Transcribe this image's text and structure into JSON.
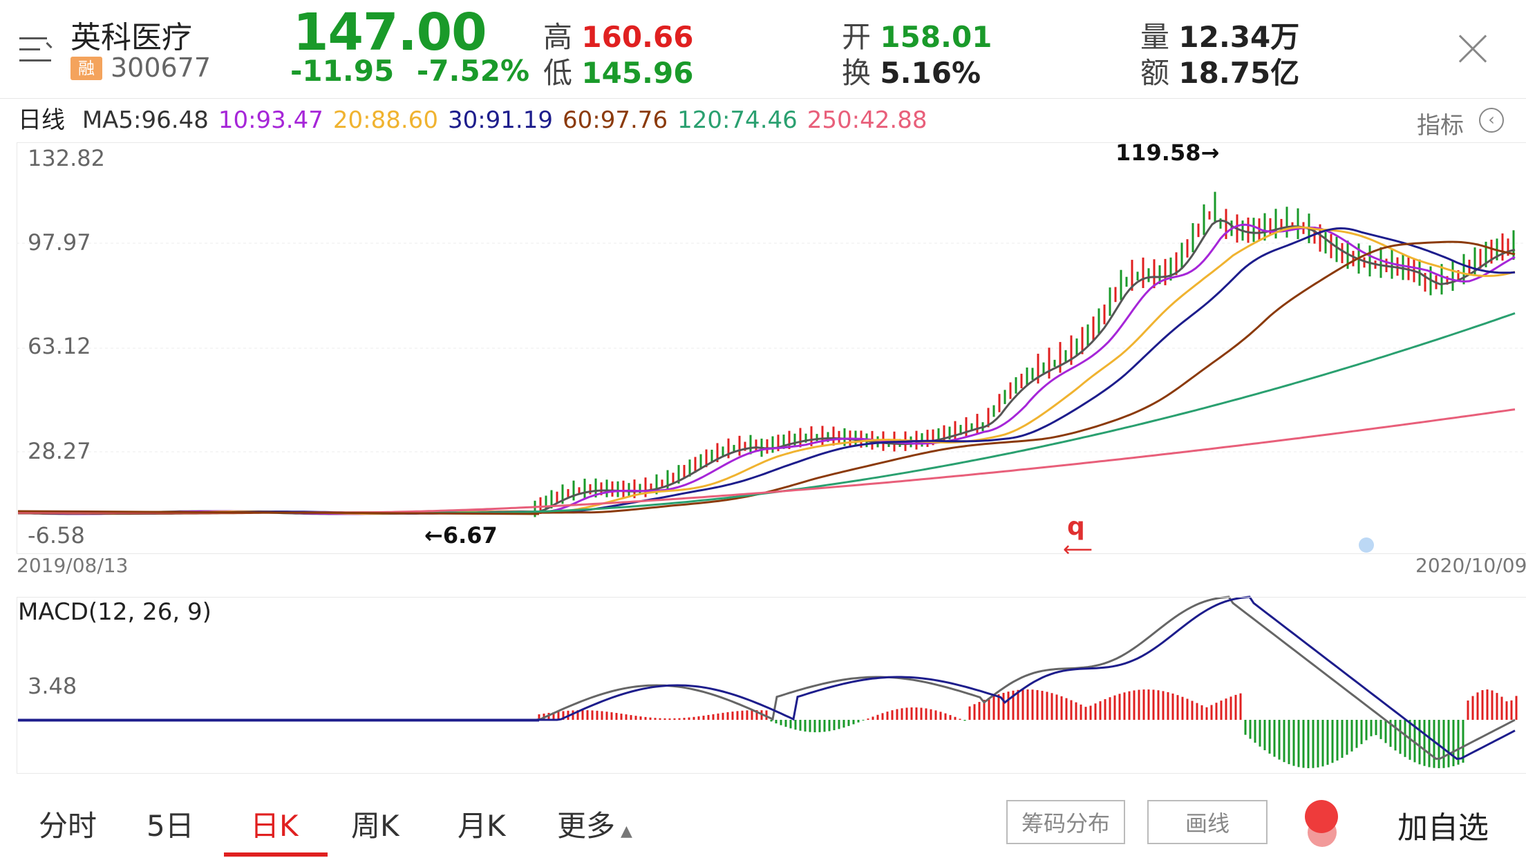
{
  "header": {
    "name": "英科医疗",
    "badge": "融",
    "code": "300677",
    "price": "147.00",
    "change": "-11.95",
    "change_pct": "-7.52%",
    "high_label": "高",
    "high": "160.66",
    "low_label": "低",
    "low": "145.96",
    "open_label": "开",
    "open": "158.01",
    "turnover_label": "换",
    "turnover": "5.16%",
    "volume_label": "量",
    "volume": "12.34万",
    "amount_label": "额",
    "amount": "18.75亿"
  },
  "ma_row": {
    "period": "日线",
    "items": [
      {
        "label": "MA5:96.48",
        "color": "#333333"
      },
      {
        "label": "10:93.47",
        "color": "#a626d8"
      },
      {
        "label": "20:88.60",
        "color": "#f0b330"
      },
      {
        "label": "30:91.19",
        "color": "#1d1d8c"
      },
      {
        "label": "60:97.76",
        "color": "#8b3a0a"
      },
      {
        "label": "120:74.46",
        "color": "#2aa070"
      },
      {
        "label": "250:42.88",
        "color": "#e85f7a"
      }
    ],
    "indicator_label": "指标",
    "indicator_icon": "chevron-left-circle-icon"
  },
  "kchart": {
    "y_labels": [
      "132.82",
      "97.97",
      "63.12",
      "28.27",
      "-6.58"
    ],
    "date_start": "2019/08/13",
    "date_end": "2020/10/09",
    "high_annotation": "119.58→",
    "low_annotation": "←6.67",
    "marker": "q"
  },
  "macd": {
    "title": "MACD(12, 26, 9)",
    "y_label": "3.48"
  },
  "tabs": [
    "分时",
    "5日",
    "日K",
    "周K",
    "月K",
    "更多"
  ],
  "active_tab": "日K",
  "buttons": {
    "chips": "筹码分布",
    "draw": "画线",
    "add_fav": "加自选"
  },
  "colors": {
    "up": "#e02020",
    "down": "#1a9a2a"
  }
}
